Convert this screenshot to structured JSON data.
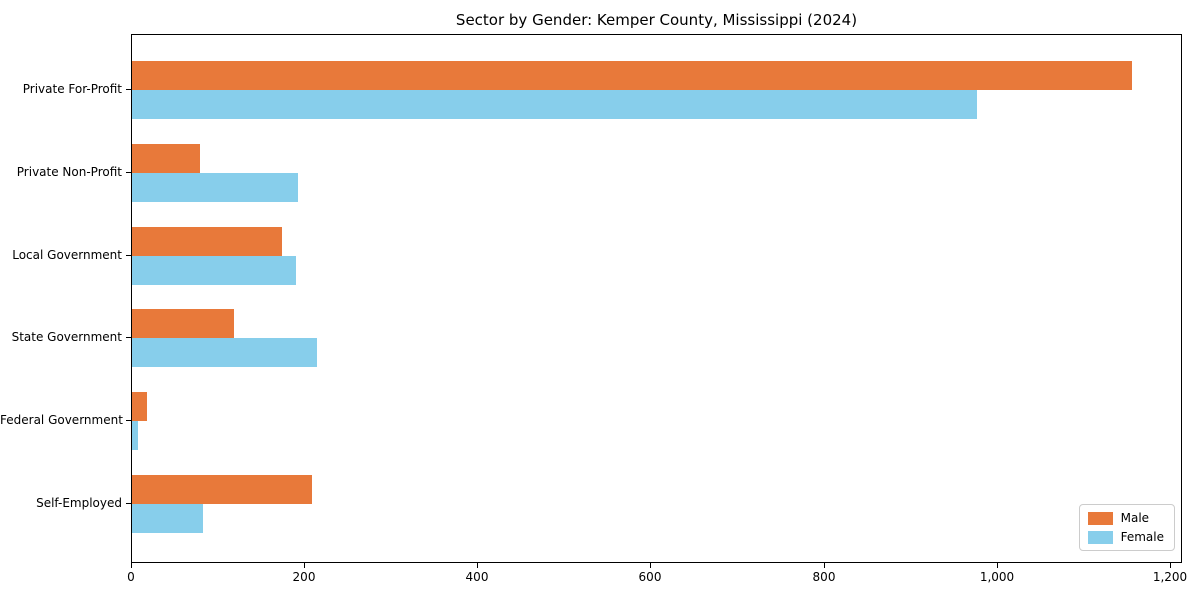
{
  "chart_data": {
    "type": "bar",
    "orientation": "horizontal",
    "title": "Sector by Gender: Kemper County, Mississippi (2024)",
    "categories": [
      "Private For-Profit",
      "Private Non-Profit",
      "Local Government",
      "State Government",
      "Federal Government",
      "Self-Employed"
    ],
    "series": [
      {
        "name": "Male",
        "color": "#e8793a",
        "values": [
          1155,
          79,
          173,
          118,
          17,
          208
        ]
      },
      {
        "name": "Female",
        "color": "#87ceeb",
        "values": [
          976,
          192,
          190,
          214,
          7,
          82
        ]
      }
    ],
    "xlabel": "",
    "ylabel": "",
    "xlim": [
      0,
      1214
    ],
    "xticks": {
      "values": [
        0,
        200,
        400,
        600,
        800,
        1000,
        1200
      ],
      "labels": [
        "0",
        "200",
        "400",
        "600",
        "800",
        "1,000",
        "1,200"
      ]
    },
    "grid": false,
    "legend_position": "lower right",
    "colors": {
      "background": "#ffffff",
      "axis": "#000000",
      "legend_border": "#cccccc"
    }
  }
}
